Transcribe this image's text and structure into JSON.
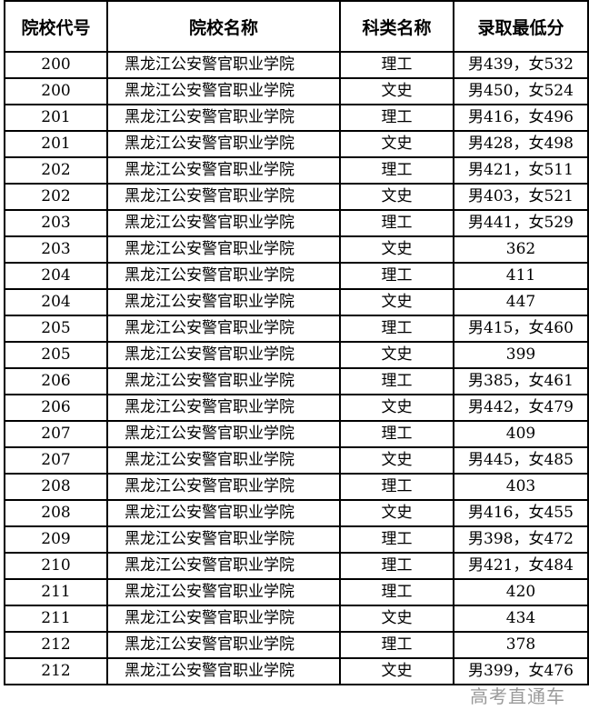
{
  "headers": [
    "院校代号",
    "院校名称",
    "科类名称",
    "录取最低分"
  ],
  "rows": [
    [
      "200",
      "黑龙江公安警官职业学院",
      "理工",
      "男439，女532"
    ],
    [
      "200",
      "黑龙江公安警官职业学院",
      "文史",
      "男450，女524"
    ],
    [
      "201",
      "黑龙江公安警官职业学院",
      "理工",
      "男416，女496"
    ],
    [
      "201",
      "黑龙江公安警官职业学院",
      "文史",
      "男428，女498"
    ],
    [
      "202",
      "黑龙江公安警官职业学院",
      "理工",
      "男421，女511"
    ],
    [
      "202",
      "黑龙江公安警官职业学院",
      "文史",
      "男403，女521"
    ],
    [
      "203",
      "黑龙江公安警官职业学院",
      "理工",
      "男441，女529"
    ],
    [
      "203",
      "黑龙江公安警官职业学院",
      "文史",
      "362"
    ],
    [
      "204",
      "黑龙江公安警官职业学院",
      "理工",
      "411"
    ],
    [
      "204",
      "黑龙江公安警官职业学院",
      "文史",
      "447"
    ],
    [
      "205",
      "黑龙江公安警官职业学院",
      "理工",
      "男415，女460"
    ],
    [
      "205",
      "黑龙江公安警官职业学院",
      "文史",
      "399"
    ],
    [
      "206",
      "黑龙江公安警官职业学院",
      "理工",
      "男385，女461"
    ],
    [
      "206",
      "黑龙江公安警官职业学院",
      "文史",
      "男442，女479"
    ],
    [
      "207",
      "黑龙江公安警官职业学院",
      "理工",
      "409"
    ],
    [
      "207",
      "黑龙江公安警官职业学院",
      "文史",
      "男445，女485"
    ],
    [
      "208",
      "黑龙江公安警官职业学院",
      "理工",
      "403"
    ],
    [
      "208",
      "黑龙江公安警官职业学院",
      "文史",
      "男416，女455"
    ],
    [
      "209",
      "黑龙江公安警官职业学院",
      "理工",
      "男398，女472"
    ],
    [
      "210",
      "黑龙江公安警官职业学院",
      "理工",
      "男421，女484"
    ],
    [
      "211",
      "黑龙江公安警官职业学院",
      "理工",
      "420"
    ],
    [
      "211",
      "黑龙江公安警官职业学院",
      "文史",
      "434"
    ],
    [
      "212",
      "黑龙江公安警官职业学院",
      "理工",
      "378"
    ],
    [
      "212",
      "黑龙江公安警官职业学院",
      "文史",
      "男399，女476"
    ]
  ],
  "watermark": "高考直通车"
}
